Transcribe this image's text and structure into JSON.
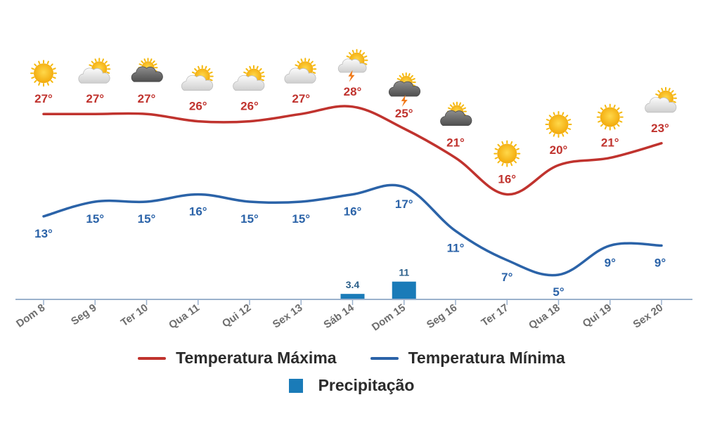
{
  "chart_data": {
    "type": "line",
    "categories": [
      "Dom 8",
      "Seg 9",
      "Ter 10",
      "Qua 11",
      "Qui 12",
      "Sex 13",
      "Sáb 14",
      "Dom 15",
      "Seg 16",
      "Ter 17",
      "Qua 18",
      "Qui 19",
      "Sex 20"
    ],
    "series": [
      {
        "name": "Temperatura Máxima",
        "color": "#c0332e",
        "values": [
          27,
          27,
          27,
          26,
          26,
          27,
          28,
          25,
          21,
          16,
          20,
          21,
          23
        ],
        "labels": [
          "27°",
          "27°",
          "27°",
          "26°",
          "26°",
          "27°",
          "28°",
          "25°",
          "21°",
          "16°",
          "20°",
          "21°",
          "23°"
        ]
      },
      {
        "name": "Temperatura Mínima",
        "color": "#2b63a8",
        "values": [
          13,
          15,
          15,
          16,
          15,
          15,
          16,
          17,
          11,
          7,
          5,
          9,
          9
        ],
        "labels": [
          "13°",
          "15°",
          "15°",
          "16°",
          "15°",
          "15°",
          "16°",
          "17°",
          "11°",
          "7°",
          "5°",
          "9°",
          "9°"
        ]
      },
      {
        "name": "Precipitação",
        "color": "#1a7bb8",
        "type": "bar",
        "values": [
          0,
          0,
          0,
          0,
          0,
          0,
          3.4,
          11,
          0,
          0,
          0,
          0,
          0
        ],
        "labels": [
          "",
          "",
          "",
          "",
          "",
          "",
          "3.4",
          "11",
          "",
          "",
          "",
          "",
          ""
        ]
      }
    ],
    "weather_icons": [
      "sun-icon",
      "partly-cloudy-icon",
      "cloudy-icon",
      "partly-cloudy-icon",
      "partly-cloudy-icon",
      "partly-cloudy-icon",
      "thunderstorm-icon",
      "thunderstorm-cloudy-icon",
      "cloudy-icon",
      "sun-icon",
      "sun-icon",
      "sun-icon",
      "partly-cloudy-icon"
    ],
    "title": "",
    "xlabel": "",
    "ylabel": "",
    "legend_position": "bottom-center",
    "grid": false
  },
  "legend": {
    "max_label": "Temperatura Máxima",
    "min_label": "Temperatura Mínima",
    "precip_label": "Precipitação"
  },
  "colors": {
    "axis": "#9bb1cc",
    "tick_text": "#6d6d6d",
    "sun": "#f5b90f",
    "cloud_light": "#e4e4e4",
    "cloud_dark": "#6e6e6e",
    "bolt": "#f07a1a"
  }
}
